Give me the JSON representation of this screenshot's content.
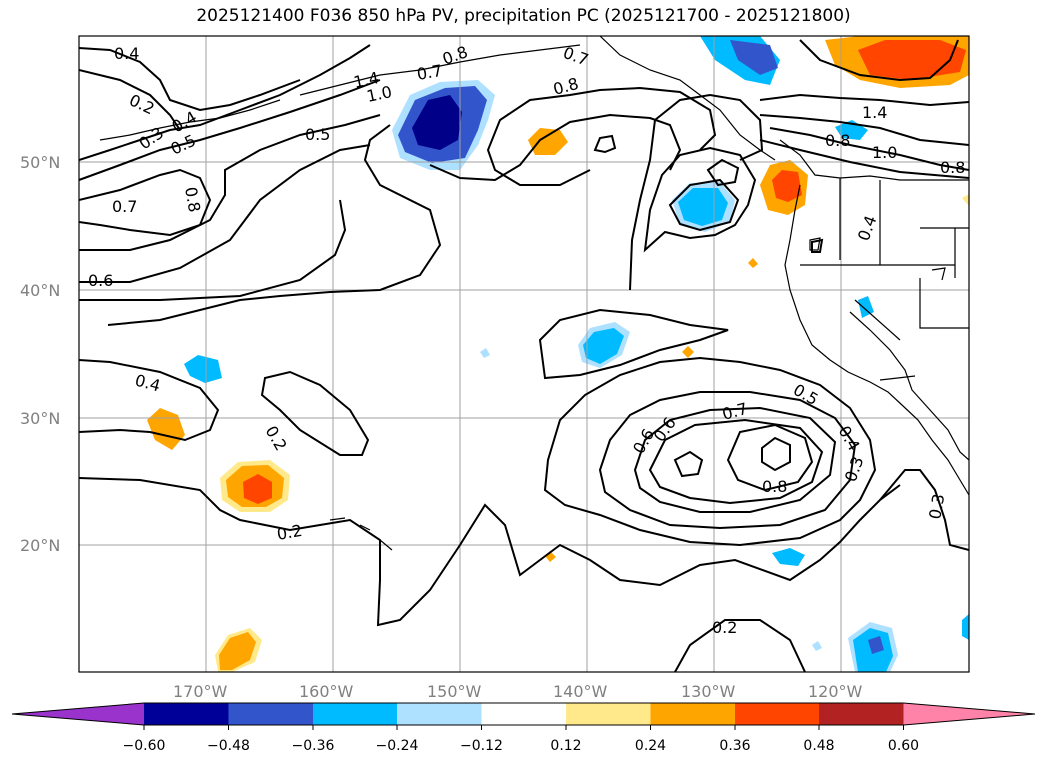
{
  "title": "2025121400 F036 850 hPa PV, precipitation PC (2025121700 - 2025121800)",
  "map": {
    "lat_labels": [
      "50°N",
      "40°N",
      "30°N",
      "20°N"
    ],
    "lon_labels": [
      "170°W",
      "160°W",
      "150°W",
      "140°W",
      "130°W",
      "120°W"
    ],
    "contour_labels": [
      "0.4",
      "0.2",
      "0.3",
      "0.4",
      "0.5",
      "0.5",
      "0.7",
      "0.8",
      "0.8",
      "0.7",
      "1.4",
      "1.0",
      "0.6",
      "0.7",
      "0.8",
      "0.8",
      "1.4",
      "1.0",
      "0.8",
      "0.6",
      "0.4",
      "0.4",
      "0.2",
      "0.5",
      "0.7",
      "0.6",
      "0.4",
      "0.3",
      "0.8",
      "0.3",
      "0.2",
      "0.2"
    ]
  },
  "colorbar": {
    "ticks": [
      "−0.60",
      "−0.48",
      "−0.36",
      "−0.24",
      "−0.12",
      "0.12",
      "0.24",
      "0.36",
      "0.48",
      "0.60"
    ],
    "colors": [
      "#9933cc",
      "#000099",
      "#3355cc",
      "#00bbff",
      "#aee0ff",
      "#ffffff",
      "#ffe98a",
      "#ffa500",
      "#ff4500",
      "#b22222",
      "#ff82a9"
    ]
  }
}
